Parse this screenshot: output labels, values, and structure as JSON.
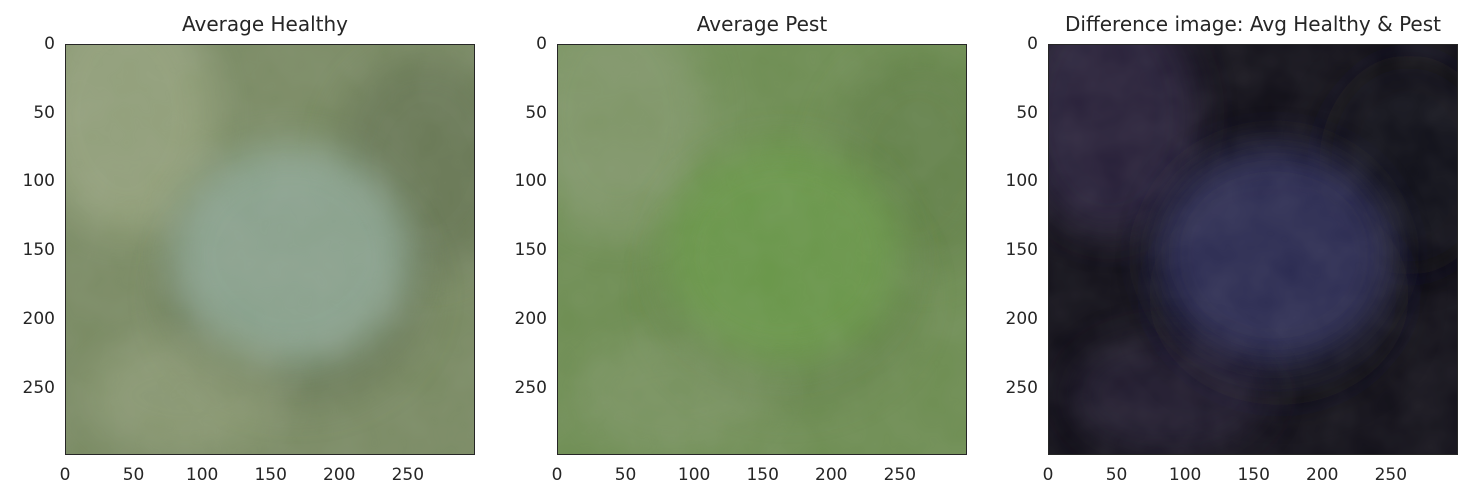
{
  "chart_data": [
    {
      "type": "heatmap",
      "title": "Average Healthy",
      "xlabel": "",
      "ylabel": "",
      "xlim": [
        0,
        299
      ],
      "ylim": [
        299,
        0
      ],
      "x_ticks": [
        "0",
        "50",
        "100",
        "150",
        "200",
        "250"
      ],
      "y_ticks": [
        "0",
        "50",
        "100",
        "150",
        "200",
        "250"
      ],
      "colors": {
        "background": "#7a8b63",
        "blob": "#8fa895",
        "blob_shadow": "#5f6e4d",
        "corner_light": "#a7b28e"
      }
    },
    {
      "type": "heatmap",
      "title": "Average Pest",
      "xlabel": "",
      "ylabel": "",
      "xlim": [
        0,
        299
      ],
      "ylim": [
        299,
        0
      ],
      "x_ticks": [
        "0",
        "50",
        "100",
        "150",
        "200",
        "250"
      ],
      "y_ticks": [
        "0",
        "50",
        "100",
        "150",
        "200",
        "250"
      ],
      "colors": {
        "background": "#6e8e52",
        "blob": "#6a9a4a",
        "blob_shadow": "#5f7d45",
        "corner_light": "#8fa07a"
      }
    },
    {
      "type": "heatmap",
      "title": "Difference image: Avg Healthy & Pest",
      "xlabel": "",
      "ylabel": "",
      "xlim": [
        0,
        299
      ],
      "ylim": [
        299,
        0
      ],
      "x_ticks": [
        "0",
        "50",
        "100",
        "150",
        "200",
        "250"
      ],
      "y_ticks": [
        "0",
        "50",
        "100",
        "150",
        "200",
        "250"
      ],
      "colors": {
        "background": "#0f0d16",
        "blob": "#2e2f58",
        "blob_shadow": "#090812",
        "corner_light": "#3a2f55"
      }
    }
  ]
}
